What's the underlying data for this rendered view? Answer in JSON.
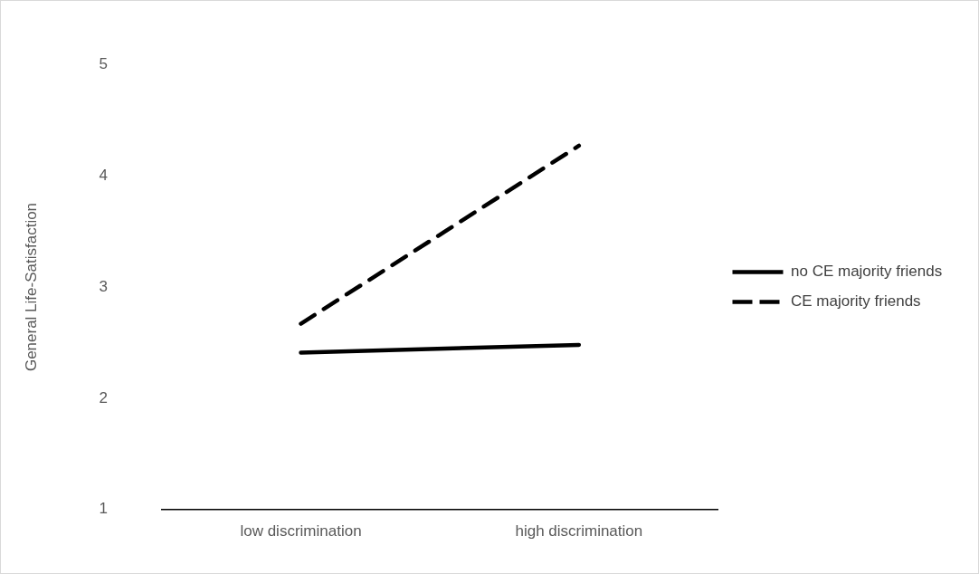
{
  "chart_data": {
    "type": "line",
    "ylabel": "General Life-Satisfaction",
    "categories": [
      "low discrimination",
      "high discrimination"
    ],
    "series": [
      {
        "name": "no CE majority friends",
        "color": "#000000",
        "values": [
          2.41,
          2.48
        ],
        "line_style": "solid"
      },
      {
        "name": "CE majority friends",
        "color": "#000000",
        "values": [
          2.67,
          4.27
        ],
        "line_style": "dashed"
      }
    ],
    "ylim": [
      1,
      5
    ],
    "yticks": [
      1,
      2,
      3,
      4,
      5
    ],
    "grid": false,
    "legend": "right",
    "marker": "none"
  }
}
